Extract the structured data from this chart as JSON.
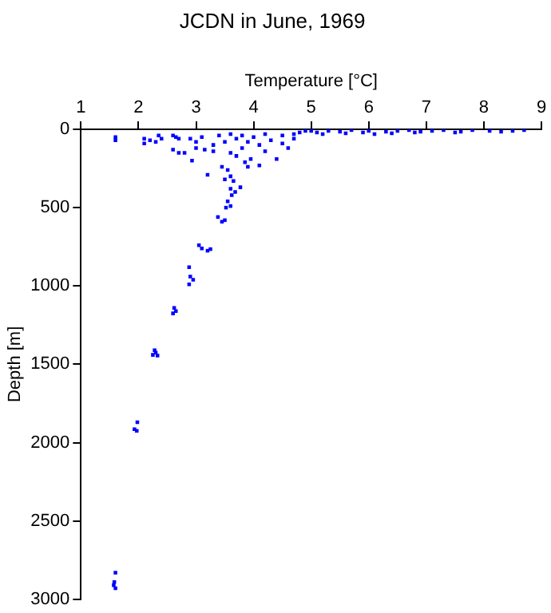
{
  "chart_data": {
    "type": "scatter",
    "title": "JCDN in June, 1969",
    "xlabel": "Temperature [°C]",
    "ylabel": "Depth [m]",
    "x": [
      1.6,
      1.58,
      1.57,
      1.6,
      1.98,
      1.93,
      1.97,
      2.28,
      2.25,
      2.33,
      2.3,
      2.62,
      2.65,
      2.6,
      2.88,
      2.9,
      2.95,
      2.88,
      3.05,
      3.1,
      3.2,
      3.25,
      3.38,
      3.45,
      3.5,
      3.55,
      3.6,
      3.52,
      3.6,
      3.68,
      3.62,
      3.77,
      3.45,
      3.55,
      3.6,
      3.5,
      3.65,
      3.2,
      2.93,
      3.85,
      3.95,
      4.1,
      3.9,
      4.4,
      1.6,
      1.6,
      2.1,
      2.1,
      2.2,
      2.35,
      2.4,
      2.3,
      2.6,
      2.65,
      2.7,
      2.6,
      2.7,
      2.8,
      2.9,
      3.0,
      3.1,
      3.0,
      3.15,
      3.3,
      3.4,
      3.3,
      3.5,
      3.6,
      3.7,
      3.6,
      3.7,
      3.8,
      3.9,
      3.8,
      4.0,
      4.1,
      4.2,
      4.3,
      4.5,
      4.5,
      4.7,
      4.7,
      4.8,
      4.9,
      4.6,
      4.2,
      5.0,
      5.1,
      5.3,
      5.5,
      5.7,
      5.9,
      6.0,
      6.1,
      6.3,
      6.5,
      6.7,
      6.9,
      7.1,
      7.3,
      7.5,
      7.6,
      7.8,
      8.1,
      8.3,
      8.5,
      8.7,
      5.2,
      5.6,
      6.4,
      6.8
    ],
    "values": [
      2830,
      2890,
      2910,
      2930,
      1870,
      1915,
      1925,
      1410,
      1440,
      1445,
      1425,
      1140,
      1160,
      1175,
      880,
      940,
      960,
      990,
      740,
      760,
      775,
      765,
      560,
      590,
      580,
      460,
      490,
      500,
      380,
      400,
      420,
      370,
      240,
      260,
      300,
      320,
      330,
      290,
      200,
      210,
      190,
      230,
      240,
      190,
      50,
      70,
      60,
      90,
      70,
      40,
      60,
      80,
      40,
      50,
      60,
      130,
      150,
      150,
      60,
      80,
      50,
      120,
      130,
      100,
      40,
      140,
      80,
      30,
      60,
      150,
      170,
      40,
      80,
      120,
      50,
      100,
      30,
      70,
      40,
      90,
      30,
      60,
      20,
      10,
      120,
      140,
      10,
      20,
      10,
      15,
      5,
      20,
      10,
      30,
      15,
      10,
      5,
      15,
      10,
      5,
      20,
      15,
      5,
      10,
      15,
      10,
      5,
      30,
      25,
      25,
      20
    ],
    "color": "#0000ff",
    "marker": "square",
    "grid": false,
    "xlim": [
      1,
      9
    ],
    "xticks": [
      1,
      2,
      3,
      4,
      5,
      6,
      7,
      8,
      9
    ],
    "ylim": [
      3000,
      0
    ],
    "yticks": [
      0,
      500,
      1000,
      1500,
      2000,
      2500,
      3000
    ]
  }
}
